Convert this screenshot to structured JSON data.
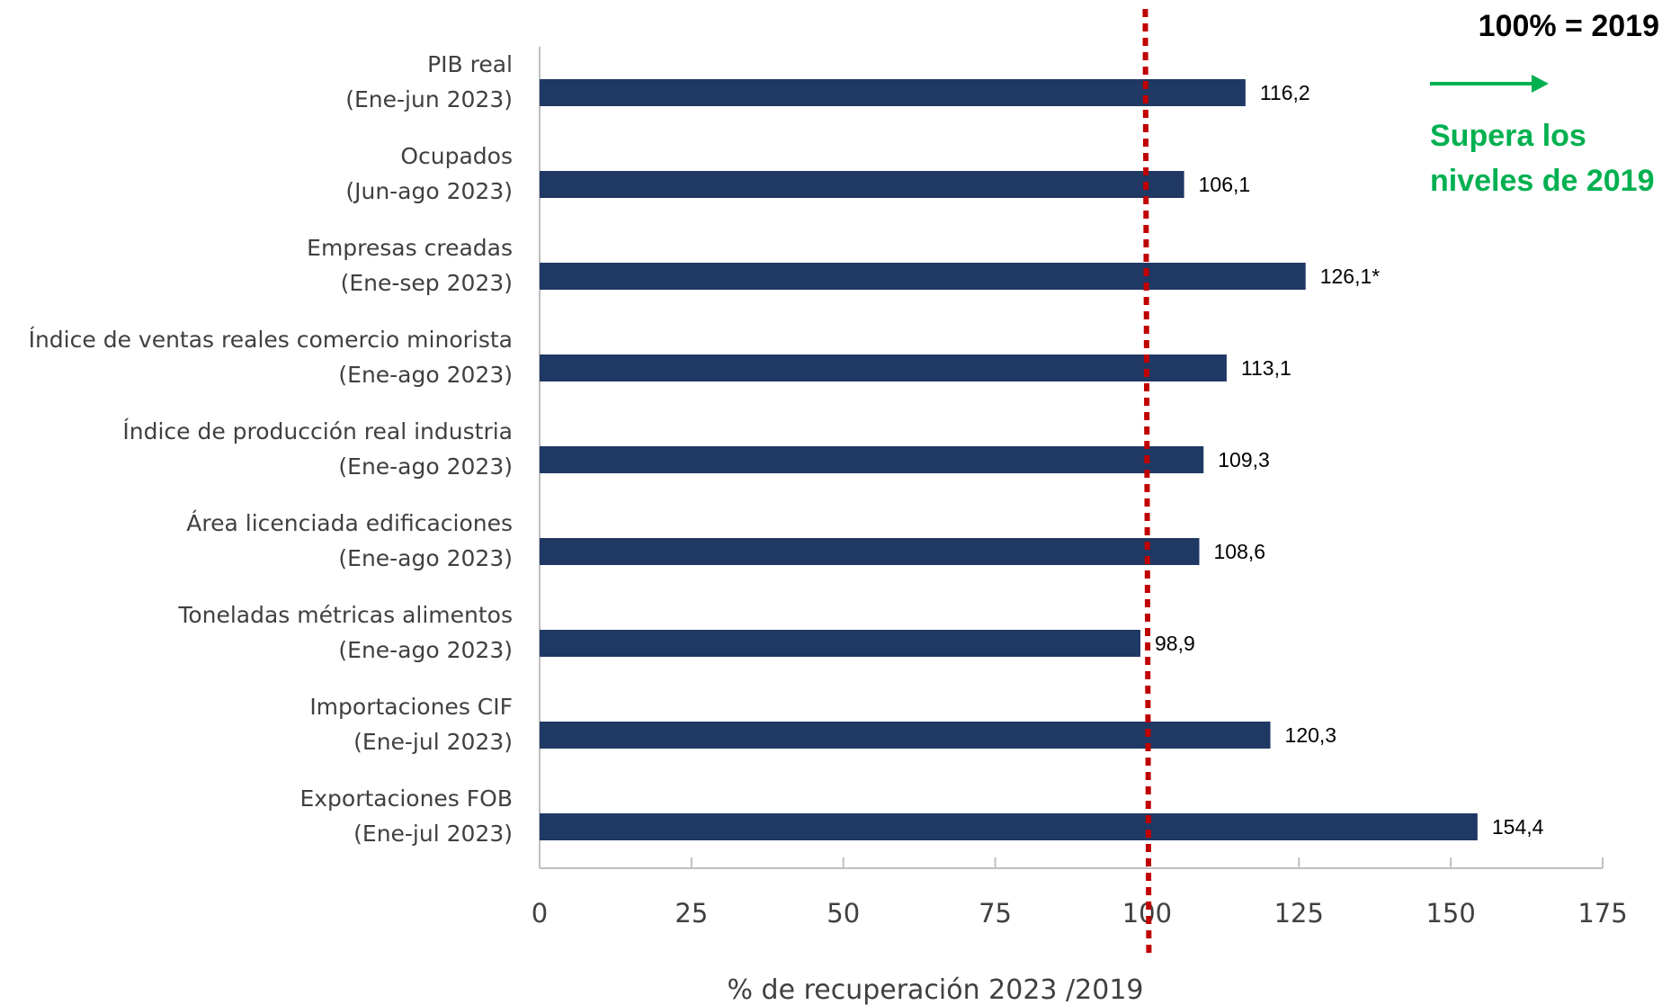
{
  "chart_data": {
    "type": "bar",
    "orientation": "horizontal",
    "xlabel": "% de recuperación 2023 /2019",
    "xlim": [
      0,
      175
    ],
    "xticks": [
      0,
      25,
      50,
      75,
      100,
      125,
      150,
      175
    ],
    "reference_line": {
      "value": 100,
      "style": "dotted",
      "color": "#c00000"
    },
    "reference_note": "100% = 2019",
    "legend_note": {
      "lines": [
        "Supera los",
        "niveles de 2019"
      ],
      "color": "#00b050",
      "arrow_color": "#00b050"
    },
    "bar_color": "#1f3864",
    "categories": [
      {
        "name": "PIB real",
        "period": "(Ene-jun 2023)",
        "value": 116.2,
        "label": "116,2"
      },
      {
        "name": "Ocupados",
        "period": "(Jun-ago 2023)",
        "value": 106.1,
        "label": "106,1"
      },
      {
        "name": "Empresas creadas",
        "period": "(Ene-sep 2023)",
        "value": 126.1,
        "label": "126,1*"
      },
      {
        "name": "Índice de ventas reales comercio minorista",
        "period": "(Ene-ago 2023)",
        "value": 113.1,
        "label": "113,1"
      },
      {
        "name": "Índice de producción real industria",
        "period": "(Ene-ago 2023)",
        "value": 109.3,
        "label": "109,3"
      },
      {
        "name": "Área licenciada edificaciones",
        "period": "(Ene-ago 2023)",
        "value": 108.6,
        "label": "108,6"
      },
      {
        "name": "Toneladas métricas alimentos",
        "period": "(Ene-ago 2023)",
        "value": 98.9,
        "label": "98,9"
      },
      {
        "name": "Importaciones CIF",
        "period": "(Ene-jul 2023)",
        "value": 120.3,
        "label": "120,3"
      },
      {
        "name": "Exportaciones FOB",
        "period": "(Ene-jul 2023)",
        "value": 154.4,
        "label": "154,4"
      }
    ]
  }
}
